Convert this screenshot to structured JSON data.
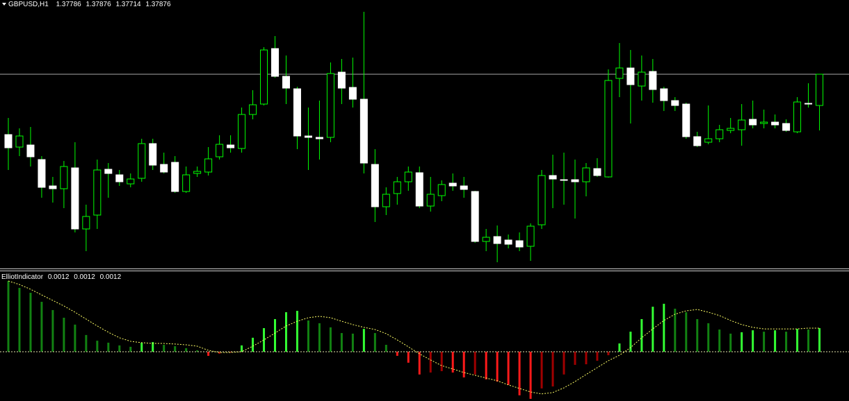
{
  "chart_data": [
    {
      "type": "candlestick",
      "title": "GBPUSD,H1",
      "open": [
        1.37702,
        1.37666,
        1.37672,
        1.3763,
        1.37554,
        1.37546,
        1.37606,
        1.3743,
        1.3747,
        1.37602,
        1.37586,
        1.3756,
        1.37576,
        1.37676,
        1.37616,
        1.37622,
        1.37538,
        1.3759,
        1.37594,
        1.37638,
        1.37672,
        1.37662,
        1.3776,
        1.3779,
        1.3795,
        1.3787,
        1.37834,
        1.37698,
        1.37694,
        1.37694,
        1.37882,
        1.37838,
        1.37804,
        1.37616,
        1.37494,
        1.37532,
        1.37566,
        1.37592,
        1.37496,
        1.37526,
        1.37562,
        1.37554,
        1.37538,
        1.37394,
        1.37408,
        1.37398,
        1.37396,
        1.3738,
        1.37442,
        1.37584,
        1.37572,
        1.37572,
        1.37566,
        1.37604,
        1.3758,
        1.37864,
        1.37894,
        1.37842,
        1.37884,
        1.37834,
        1.378,
        1.3779,
        1.37696,
        1.3768,
        1.3769,
        1.37714,
        1.37716,
        1.37746,
        1.37734,
        1.37738,
        1.37734,
        1.3771,
        1.37792,
        1.37786
      ],
      "high": [
        1.3775,
        1.3772,
        1.37724,
        1.3764,
        1.3758,
        1.37626,
        1.3768,
        1.375,
        1.3763,
        1.3762,
        1.376,
        1.3759,
        1.3769,
        1.3769,
        1.3765,
        1.3764,
        1.3761,
        1.3761,
        1.37666,
        1.377,
        1.377,
        1.3778,
        1.3783,
        1.37954,
        1.37986,
        1.3793,
        1.3784,
        1.3778,
        1.378,
        1.3791,
        1.3792,
        1.37924,
        1.38056,
        1.3766,
        1.3755,
        1.3758,
        1.3761,
        1.3761,
        1.3758,
        1.3757,
        1.3759,
        1.3758,
        1.3754,
        1.3743,
        1.3744,
        1.37414,
        1.3742,
        1.37446,
        1.376,
        1.37644,
        1.3765,
        1.3763,
        1.3762,
        1.37634,
        1.3789,
        1.37966,
        1.37946,
        1.3793,
        1.3792,
        1.3784,
        1.3781,
        1.37794,
        1.3771,
        1.37786,
        1.3773,
        1.3775,
        1.3779,
        1.378,
        1.37774,
        1.3776,
        1.37746,
        1.3781,
        1.3785,
        1.37876
      ],
      "low": [
        1.376,
        1.3764,
        1.3761,
        1.3752,
        1.37506,
        1.3749,
        1.3742,
        1.37366,
        1.3743,
        1.3752,
        1.37554,
        1.3755,
        1.37566,
        1.376,
        1.3759,
        1.37534,
        1.37534,
        1.3758,
        1.37584,
        1.3763,
        1.3765,
        1.3765,
        1.37746,
        1.37786,
        1.37866,
        1.3779,
        1.3766,
        1.376,
        1.3763,
        1.3768,
        1.3779,
        1.3778,
        1.3759,
        1.3745,
        1.3747,
        1.375,
        1.3754,
        1.3749,
        1.3748,
        1.3751,
        1.3754,
        1.3752,
        1.3739,
        1.37366,
        1.37334,
        1.37374,
        1.37366,
        1.37338,
        1.3743,
        1.3749,
        1.375,
        1.3746,
        1.37524,
        1.3758,
        1.37578,
        1.3781,
        1.37734,
        1.378,
        1.37794,
        1.3777,
        1.3777,
        1.3769,
        1.37666,
        1.37674,
        1.3768,
        1.37706,
        1.3767,
        1.3772,
        1.3772,
        1.3772,
        1.3771,
        1.37706,
        1.3778,
        1.37714
      ],
      "close": [
        1.37664,
        1.37698,
        1.37638,
        1.3755,
        1.37546,
        1.3761,
        1.3743,
        1.37466,
        1.376,
        1.3759,
        1.37566,
        1.37574,
        1.37676,
        1.37614,
        1.37594,
        1.37538,
        1.37586,
        1.37596,
        1.37632,
        1.37674,
        1.37664,
        1.3776,
        1.37788,
        1.37946,
        1.3787,
        1.37836,
        1.37698,
        1.37694,
        1.3769,
        1.37878,
        1.37836,
        1.37804,
        1.3762,
        1.37494,
        1.3753,
        1.37566,
        1.37594,
        1.37496,
        1.3753,
        1.37558,
        1.37554,
        1.37544,
        1.37394,
        1.37406,
        1.37388,
        1.37386,
        1.37378,
        1.37438,
        1.37584,
        1.37574,
        1.3757,
        1.37566,
        1.37606,
        1.37584,
        1.37858,
        1.37894,
        1.37846,
        1.37882,
        1.37832,
        1.378,
        1.37786,
        1.37696,
        1.3767,
        1.3769,
        1.37716,
        1.3772,
        1.37744,
        1.3773,
        1.37738,
        1.3773,
        1.37714,
        1.37796,
        1.3779,
        1.37876
      ],
      "ylim": [
        1.3732,
        1.3809
      ],
      "up_color": "#00ff00",
      "down_color": "#ffffff",
      "price_line_color": "#a8a8a8"
    },
    {
      "type": "histogram",
      "title": "ElliotIndicator",
      "readout": [
        0.0012,
        0.0012,
        0.0012
      ],
      "values": [
        0.0036,
        0.00325,
        0.003,
        0.00254,
        0.00212,
        0.00173,
        0.00138,
        0.00085,
        0.00056,
        0.00046,
        0.00032,
        0.00025,
        0.00046,
        0.00049,
        0.00035,
        0.00028,
        0.00018,
        7e-05,
        -0.00021,
        -0.00011,
        -4e-05,
        0.00032,
        0.00071,
        0.0012,
        0.00166,
        0.00201,
        0.00208,
        0.00159,
        0.00145,
        0.00124,
        0.00095,
        0.00092,
        0.00116,
        0.00095,
        0.00035,
        -0.00021,
        -0.00056,
        -0.00116,
        -0.00106,
        -0.00099,
        -0.00106,
        -0.00131,
        -0.00116,
        -0.00141,
        -0.00152,
        -0.00169,
        -0.00222,
        -0.0024,
        -0.00187,
        -0.00177,
        -0.00116,
        -0.00067,
        -0.00064,
        -0.00046,
        -0.00018,
        0.00042,
        0.00102,
        0.00166,
        0.00229,
        0.00244,
        0.00219,
        0.00201,
        0.00166,
        0.00145,
        0.00113,
        0.00092,
        0.00099,
        0.00109,
        0.00102,
        0.00109,
        0.00102,
        0.00116,
        0.00113,
        0.0012
      ],
      "signal": [
        0.0036,
        0.00342,
        0.00318,
        0.00289,
        0.00261,
        0.00233,
        0.00201,
        0.00166,
        0.00131,
        0.00099,
        0.00071,
        0.00053,
        0.00046,
        0.00042,
        0.00042,
        0.00039,
        0.00035,
        0.00028,
        7e-05,
        -4e-05,
        -4e-05,
        0,
        0.00028,
        0.0006,
        0.00095,
        0.00131,
        0.00155,
        0.00173,
        0.0018,
        0.00173,
        0.00155,
        0.00138,
        0.00124,
        0.00113,
        0.00092,
        0.0006,
        0.00025,
        -0.00011,
        -0.00042,
        -0.00071,
        -0.00088,
        -0.00106,
        -0.0012,
        -0.00134,
        -0.00148,
        -0.00169,
        -0.00187,
        -0.00205,
        -0.00215,
        -0.00208,
        -0.00184,
        -0.00152,
        -0.00116,
        -0.00081,
        -0.00046,
        -0.00018,
        0.00021,
        0.00071,
        0.00116,
        0.00159,
        0.00191,
        0.00208,
        0.00215,
        0.00201,
        0.00184,
        0.00159,
        0.00138,
        0.00124,
        0.00116,
        0.00116,
        0.00116,
        0.00116,
        0.0012,
        0.0012
      ],
      "levels": [
        0
      ],
      "ylim": [
        -0.00251,
        0.00406
      ],
      "palette": {
        "pos_rising": "#33ff33",
        "pos_falling": "#128212",
        "neg_falling": "#ff1a1a",
        "neg_rising": "#a00000"
      },
      "signal_color": "#ffff66",
      "level_color": "#e8e8b0"
    }
  ]
}
